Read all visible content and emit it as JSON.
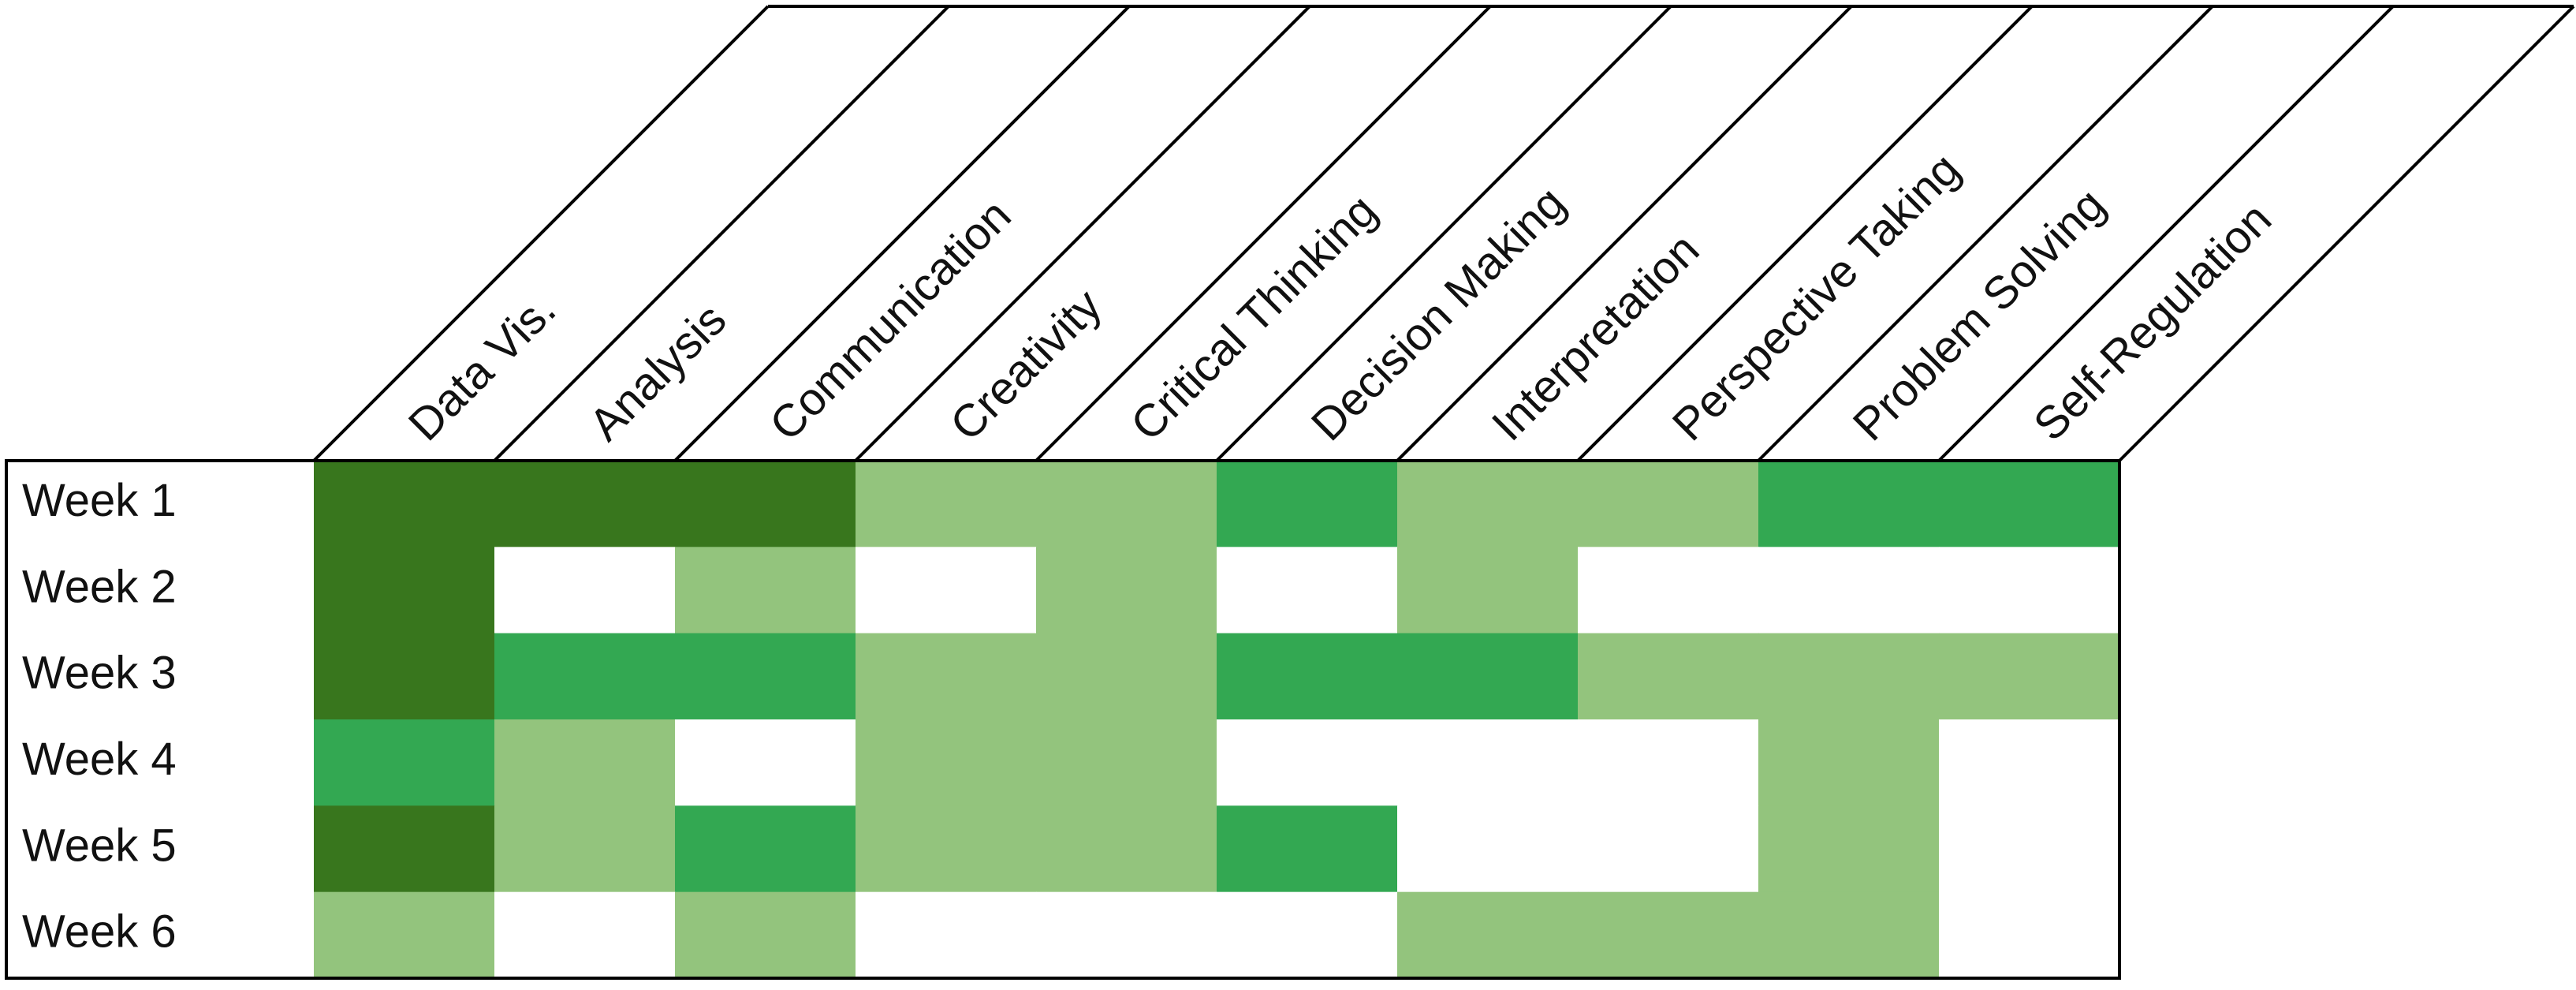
{
  "chart_data": {
    "type": "heatmap",
    "columns": [
      "Data Vis.",
      "Analysis",
      "Communication",
      "Creativity",
      "Critical Thinking",
      "Decision Making",
      "Interpretation",
      "Perspective Taking",
      "Problem Solving",
      "Self-Regulation"
    ],
    "rows": [
      "Week 1",
      "Week 2",
      "Week 3",
      "Week 4",
      "Week 5",
      "Week 6"
    ],
    "values": [
      [
        3,
        3,
        3,
        1,
        1,
        2,
        1,
        1,
        2,
        2
      ],
      [
        3,
        0,
        1,
        0,
        1,
        0,
        1,
        0,
        0,
        0
      ],
      [
        3,
        2,
        2,
        1,
        1,
        2,
        2,
        1,
        1,
        1
      ],
      [
        2,
        1,
        0,
        1,
        1,
        0,
        0,
        0,
        1,
        0
      ],
      [
        3,
        1,
        2,
        1,
        1,
        2,
        0,
        0,
        1,
        0
      ],
      [
        1,
        0,
        1,
        0,
        0,
        0,
        1,
        1,
        1,
        0
      ]
    ],
    "level_colors": [
      "#ffffff",
      "#93c47d",
      "#33a852",
      "#38761d"
    ],
    "legend": "none",
    "grid": false
  }
}
